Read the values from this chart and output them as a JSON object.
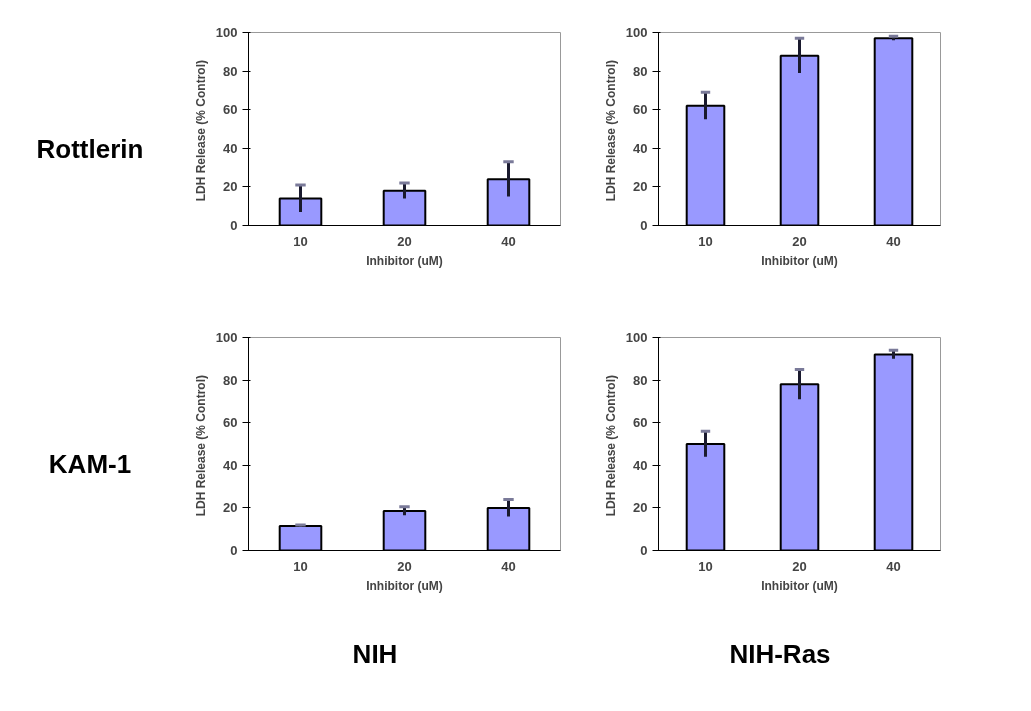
{
  "chart_data": [
    {
      "type": "bar",
      "categories": [
        "10",
        "20",
        "40"
      ],
      "values": [
        14,
        18,
        24
      ],
      "errors": [
        7,
        4,
        9
      ],
      "color": "#9999ff",
      "xlabel": "Inhibitor (uM)",
      "ylabel": "LDH Release  (% Control)",
      "ylim": [
        0,
        100
      ],
      "yticks": [
        0,
        20,
        40,
        60,
        80,
        100
      ],
      "grid": false,
      "legend": false,
      "annotations": [
        "Rottlerin"
      ]
    },
    {
      "type": "bar",
      "categories": [
        "10",
        "20",
        "40"
      ],
      "values": [
        62,
        88,
        97
      ],
      "errors": [
        7,
        9,
        1
      ],
      "color": "#9999ff",
      "xlabel": "Inhibitor (uM)",
      "ylabel": "LDH Release  (% Control)",
      "ylim": [
        0,
        100
      ],
      "yticks": [
        0,
        20,
        40,
        60,
        80,
        100
      ],
      "grid": false,
      "legend": false
    },
    {
      "type": "bar",
      "categories": [
        "10",
        "20",
        "40"
      ],
      "values": [
        11.5,
        18.5,
        20
      ],
      "errors": [
        0.5,
        2,
        4
      ],
      "color": "#9999ff",
      "xlabel": "Inhibitor (uM)",
      "ylabel": "LDH Release  (% Control)",
      "ylim": [
        0,
        100
      ],
      "yticks": [
        0,
        20,
        40,
        60,
        80,
        100
      ],
      "grid": false,
      "legend": false,
      "annotations": [
        "KAM-1",
        "NIH"
      ]
    },
    {
      "type": "bar",
      "categories": [
        "10",
        "20",
        "40"
      ],
      "values": [
        50,
        78,
        92
      ],
      "errors": [
        6,
        7,
        2
      ],
      "color": "#9999ff",
      "xlabel": "Inhibitor (uM)",
      "ylabel": "LDH Release  (% Control)",
      "ylim": [
        0,
        100
      ],
      "yticks": [
        0,
        20,
        40,
        60,
        80,
        100
      ],
      "grid": false,
      "legend": false,
      "annotations": [
        "NIH-Ras"
      ]
    }
  ]
}
